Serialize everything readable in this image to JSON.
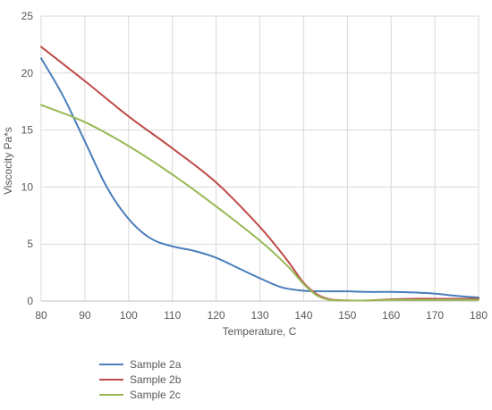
{
  "chart_data": {
    "type": "line",
    "title": "",
    "xlabel": "Temperature, C",
    "ylabel": "Viscocity Pa*s",
    "xlim": [
      80,
      180
    ],
    "ylim": [
      0,
      25
    ],
    "x_ticks": [
      80,
      90,
      100,
      110,
      120,
      130,
      140,
      150,
      160,
      170,
      180
    ],
    "y_ticks": [
      0,
      5,
      10,
      15,
      20,
      25
    ],
    "grid": true,
    "legend_position": "bottom-left",
    "series": [
      {
        "name": "Sample 2a",
        "color": "#4a7ebb",
        "points": [
          [
            80,
            21.3
          ],
          [
            85,
            18.0
          ],
          [
            90,
            14.0
          ],
          [
            95,
            10.0
          ],
          [
            100,
            7.2
          ],
          [
            105,
            5.5
          ],
          [
            110,
            4.8
          ],
          [
            115,
            4.4
          ],
          [
            120,
            3.8
          ],
          [
            125,
            2.9
          ],
          [
            130,
            2.0
          ],
          [
            135,
            1.2
          ],
          [
            140,
            0.9
          ],
          [
            145,
            0.85
          ],
          [
            150,
            0.85
          ],
          [
            155,
            0.8
          ],
          [
            160,
            0.8
          ],
          [
            165,
            0.75
          ],
          [
            170,
            0.65
          ],
          [
            175,
            0.45
          ],
          [
            180,
            0.3
          ]
        ]
      },
      {
        "name": "Sample 2b",
        "color": "#be4b48",
        "points": [
          [
            80,
            22.3
          ],
          [
            90,
            19.3
          ],
          [
            100,
            16.2
          ],
          [
            110,
            13.4
          ],
          [
            120,
            10.4
          ],
          [
            130,
            6.5
          ],
          [
            136,
            3.7
          ],
          [
            140,
            1.6
          ],
          [
            143,
            0.6
          ],
          [
            146,
            0.15
          ],
          [
            150,
            0.05
          ],
          [
            155,
            0.05
          ],
          [
            160,
            0.15
          ],
          [
            165,
            0.2
          ],
          [
            170,
            0.2
          ],
          [
            175,
            0.2
          ],
          [
            180,
            0.2
          ]
        ]
      },
      {
        "name": "Sample 2c",
        "color": "#98b954",
        "points": [
          [
            80,
            17.2
          ],
          [
            90,
            15.7
          ],
          [
            100,
            13.6
          ],
          [
            110,
            11.1
          ],
          [
            120,
            8.3
          ],
          [
            130,
            5.3
          ],
          [
            136,
            3.2
          ],
          [
            140,
            1.5
          ],
          [
            143,
            0.5
          ],
          [
            146,
            0.1
          ],
          [
            150,
            0.05
          ],
          [
            155,
            0.05
          ],
          [
            160,
            0.1
          ],
          [
            165,
            0.1
          ],
          [
            170,
            0.1
          ],
          [
            175,
            0.1
          ],
          [
            180,
            0.1
          ]
        ]
      }
    ]
  }
}
